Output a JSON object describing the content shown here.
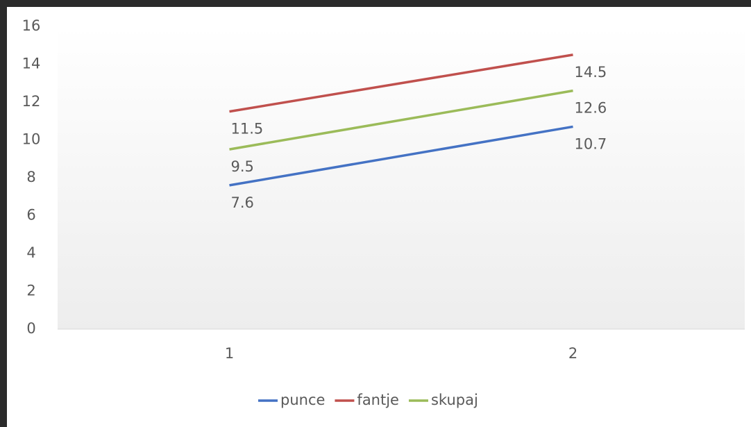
{
  "chart_data": {
    "type": "line",
    "categories": [
      "1",
      "2"
    ],
    "series": [
      {
        "name": "punce",
        "color": "#4472c4",
        "values": [
          7.6,
          10.7
        ]
      },
      {
        "name": "fantje",
        "color": "#c0504d",
        "values": [
          11.5,
          14.5
        ]
      },
      {
        "name": "skupaj",
        "color": "#9bbb59",
        "values": [
          9.5,
          12.6
        ]
      }
    ],
    "ylim": [
      0,
      16
    ],
    "yticks": [
      0,
      2,
      4,
      6,
      8,
      10,
      12,
      14,
      16
    ],
    "grid": false,
    "legend": "bottom",
    "data_labels": true
  }
}
